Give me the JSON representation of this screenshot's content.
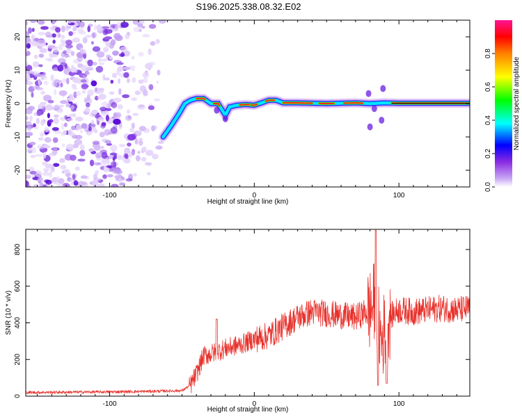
{
  "figure": {
    "title": "S196.2025.338.08.32.E02"
  },
  "colors": {
    "snr_line": "#e8302a",
    "frame": "#000000",
    "spectro_bg": "#ffffff"
  },
  "chart_data": [
    {
      "type": "heatmap",
      "name": "spectrogram",
      "xlabel": "Height of straight line (km)",
      "ylabel": "Frequency (Hz)",
      "xlim": [
        -158,
        149
      ],
      "ylim": [
        -25,
        25
      ],
      "xticks": [
        -100,
        0,
        100
      ],
      "yticks": [
        -20,
        -10,
        0,
        10,
        20
      ],
      "tick_labels_x": [
        "-100",
        "0",
        "100"
      ],
      "tick_labels_y": [
        "-20",
        "-10",
        "0",
        "10",
        "20"
      ],
      "noise_region_x": [
        -158,
        -60
      ],
      "track": {
        "description": "dominant spectral line frequency vs height",
        "x": [
          -63,
          -58,
          -52,
          -48,
          -44,
          -40,
          -35,
          -30,
          -25,
          -20,
          -17,
          -12,
          -6,
          0,
          5,
          10,
          15,
          20,
          30,
          50,
          70,
          80,
          90,
          100,
          149
        ],
        "y": [
          -10,
          -7,
          -3,
          0,
          1,
          1.5,
          1.5,
          0,
          0,
          -3.5,
          -1,
          -0.5,
          -0.3,
          -0.5,
          0.2,
          1,
          1,
          0.2,
          0.2,
          0,
          0.2,
          0,
          0.2,
          0.1,
          0.1
        ]
      },
      "colorbar": {
        "label": "Normalized spectral amplitude",
        "range": [
          0,
          1
        ],
        "ticks": [
          0.0,
          0.2,
          0.4,
          0.6,
          0.8
        ],
        "tick_labels": [
          "0.0",
          "0.2",
          "0.4",
          "0.6",
          "0.8"
        ]
      }
    },
    {
      "type": "line",
      "name": "snr",
      "xlabel": "Height of straight line (km)",
      "ylabel": "SNR (10 * v/v)",
      "xlim": [
        -158,
        149
      ],
      "ylim": [
        0,
        910
      ],
      "xticks": [
        -100,
        0,
        100
      ],
      "yticks": [
        0,
        200,
        400,
        600,
        800
      ],
      "tick_labels_x": [
        "-100",
        "0",
        "100"
      ],
      "tick_labels_y": [
        "0",
        "200",
        "400",
        "600",
        "800"
      ],
      "series": [
        {
          "name": "SNR",
          "description": "approximate envelope (km, SNR) of the dense noisy trace",
          "x": [
            -158,
            -120,
            -80,
            -50,
            -44,
            -40,
            -35,
            -30,
            -20,
            -10,
            0,
            10,
            20,
            30,
            40,
            50,
            60,
            70,
            80,
            84,
            86,
            88,
            92,
            96,
            100,
            110,
            120,
            130,
            140,
            149
          ],
          "y": [
            20,
            22,
            25,
            30,
            60,
            120,
            220,
            230,
            260,
            280,
            310,
            330,
            380,
            430,
            460,
            450,
            440,
            430,
            470,
            520,
            380,
            300,
            410,
            450,
            470,
            460,
            470,
            480,
            470,
            480
          ]
        }
      ]
    }
  ]
}
